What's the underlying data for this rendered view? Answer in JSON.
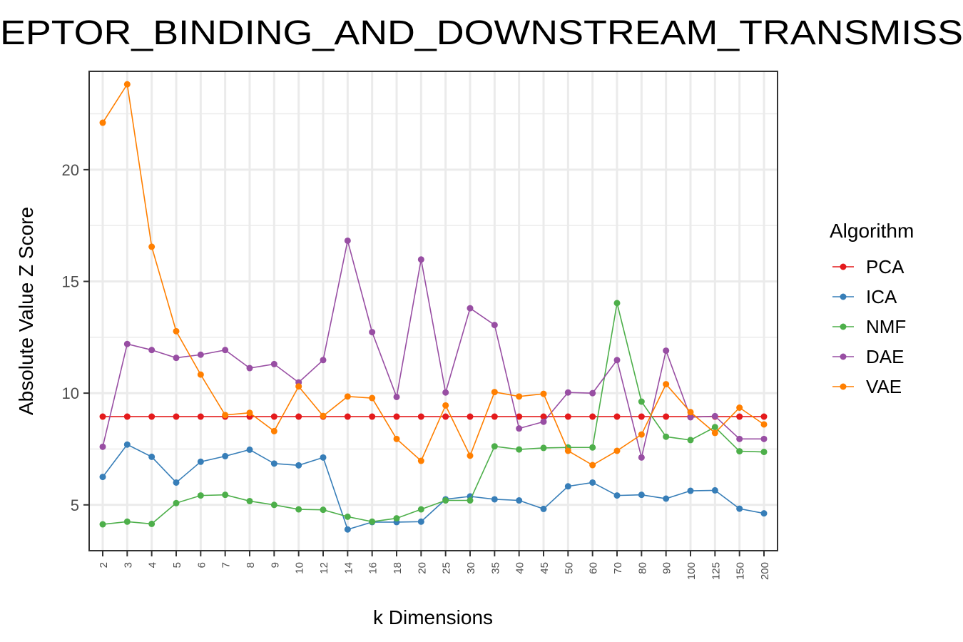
{
  "chart_data": {
    "type": "line",
    "title": "EPTOR_BINDING_AND_DOWNSTREAM_TRANSMISS",
    "xlabel": "k Dimensions",
    "ylabel": "Absolute Value Z Score",
    "categories": [
      "2",
      "3",
      "4",
      "5",
      "6",
      "7",
      "8",
      "9",
      "10",
      "12",
      "14",
      "16",
      "18",
      "20",
      "25",
      "30",
      "35",
      "40",
      "45",
      "50",
      "60",
      "70",
      "80",
      "90",
      "100",
      "125",
      "150",
      "200"
    ],
    "yticks": [
      5,
      10,
      15,
      20
    ],
    "ylim": [
      2.95,
      24.4
    ],
    "grid": true,
    "legend_title": "Algorithm",
    "legend_position": "right",
    "series": [
      {
        "name": "PCA",
        "color": "#e41a1c",
        "values": [
          8.95,
          8.95,
          8.95,
          8.95,
          8.95,
          8.95,
          8.95,
          8.95,
          8.95,
          8.95,
          8.95,
          8.95,
          8.95,
          8.95,
          8.95,
          8.95,
          8.95,
          8.95,
          8.95,
          8.95,
          8.95,
          8.95,
          8.95,
          8.95,
          8.95,
          8.95,
          8.95,
          8.95
        ]
      },
      {
        "name": "ICA",
        "color": "#377eb8",
        "values": [
          6.25,
          7.7,
          7.15,
          6.0,
          6.93,
          7.18,
          7.47,
          6.85,
          6.77,
          7.12,
          3.9,
          4.23,
          4.23,
          4.25,
          5.25,
          5.38,
          5.25,
          5.2,
          4.82,
          5.83,
          6.0,
          5.42,
          5.45,
          5.28,
          5.63,
          5.65,
          4.83,
          4.62
        ]
      },
      {
        "name": "NMF",
        "color": "#4daf4a",
        "values": [
          4.13,
          4.25,
          4.15,
          5.08,
          5.42,
          5.45,
          5.17,
          5.0,
          4.8,
          4.78,
          4.47,
          4.25,
          4.4,
          4.8,
          5.2,
          5.2,
          7.62,
          7.48,
          7.55,
          7.57,
          7.57,
          14.03,
          9.62,
          8.05,
          7.9,
          8.48,
          7.4,
          7.37
        ]
      },
      {
        "name": "DAE",
        "color": "#984ea3",
        "values": [
          7.6,
          12.2,
          11.93,
          11.58,
          11.72,
          11.93,
          11.12,
          11.3,
          10.48,
          11.48,
          16.82,
          12.73,
          9.83,
          15.98,
          10.03,
          13.8,
          13.05,
          8.42,
          8.72,
          10.03,
          10.0,
          11.48,
          7.12,
          11.9,
          8.92,
          8.97,
          7.95,
          7.95
        ]
      },
      {
        "name": "VAE",
        "color": "#ff7f00",
        "values": [
          22.1,
          23.82,
          16.55,
          12.77,
          10.83,
          9.02,
          9.12,
          8.3,
          10.3,
          8.98,
          9.85,
          9.78,
          7.95,
          6.97,
          9.45,
          7.2,
          10.05,
          9.85,
          9.97,
          7.42,
          6.78,
          7.42,
          8.15,
          10.4,
          9.15,
          8.22,
          9.35,
          8.6
        ]
      }
    ]
  }
}
